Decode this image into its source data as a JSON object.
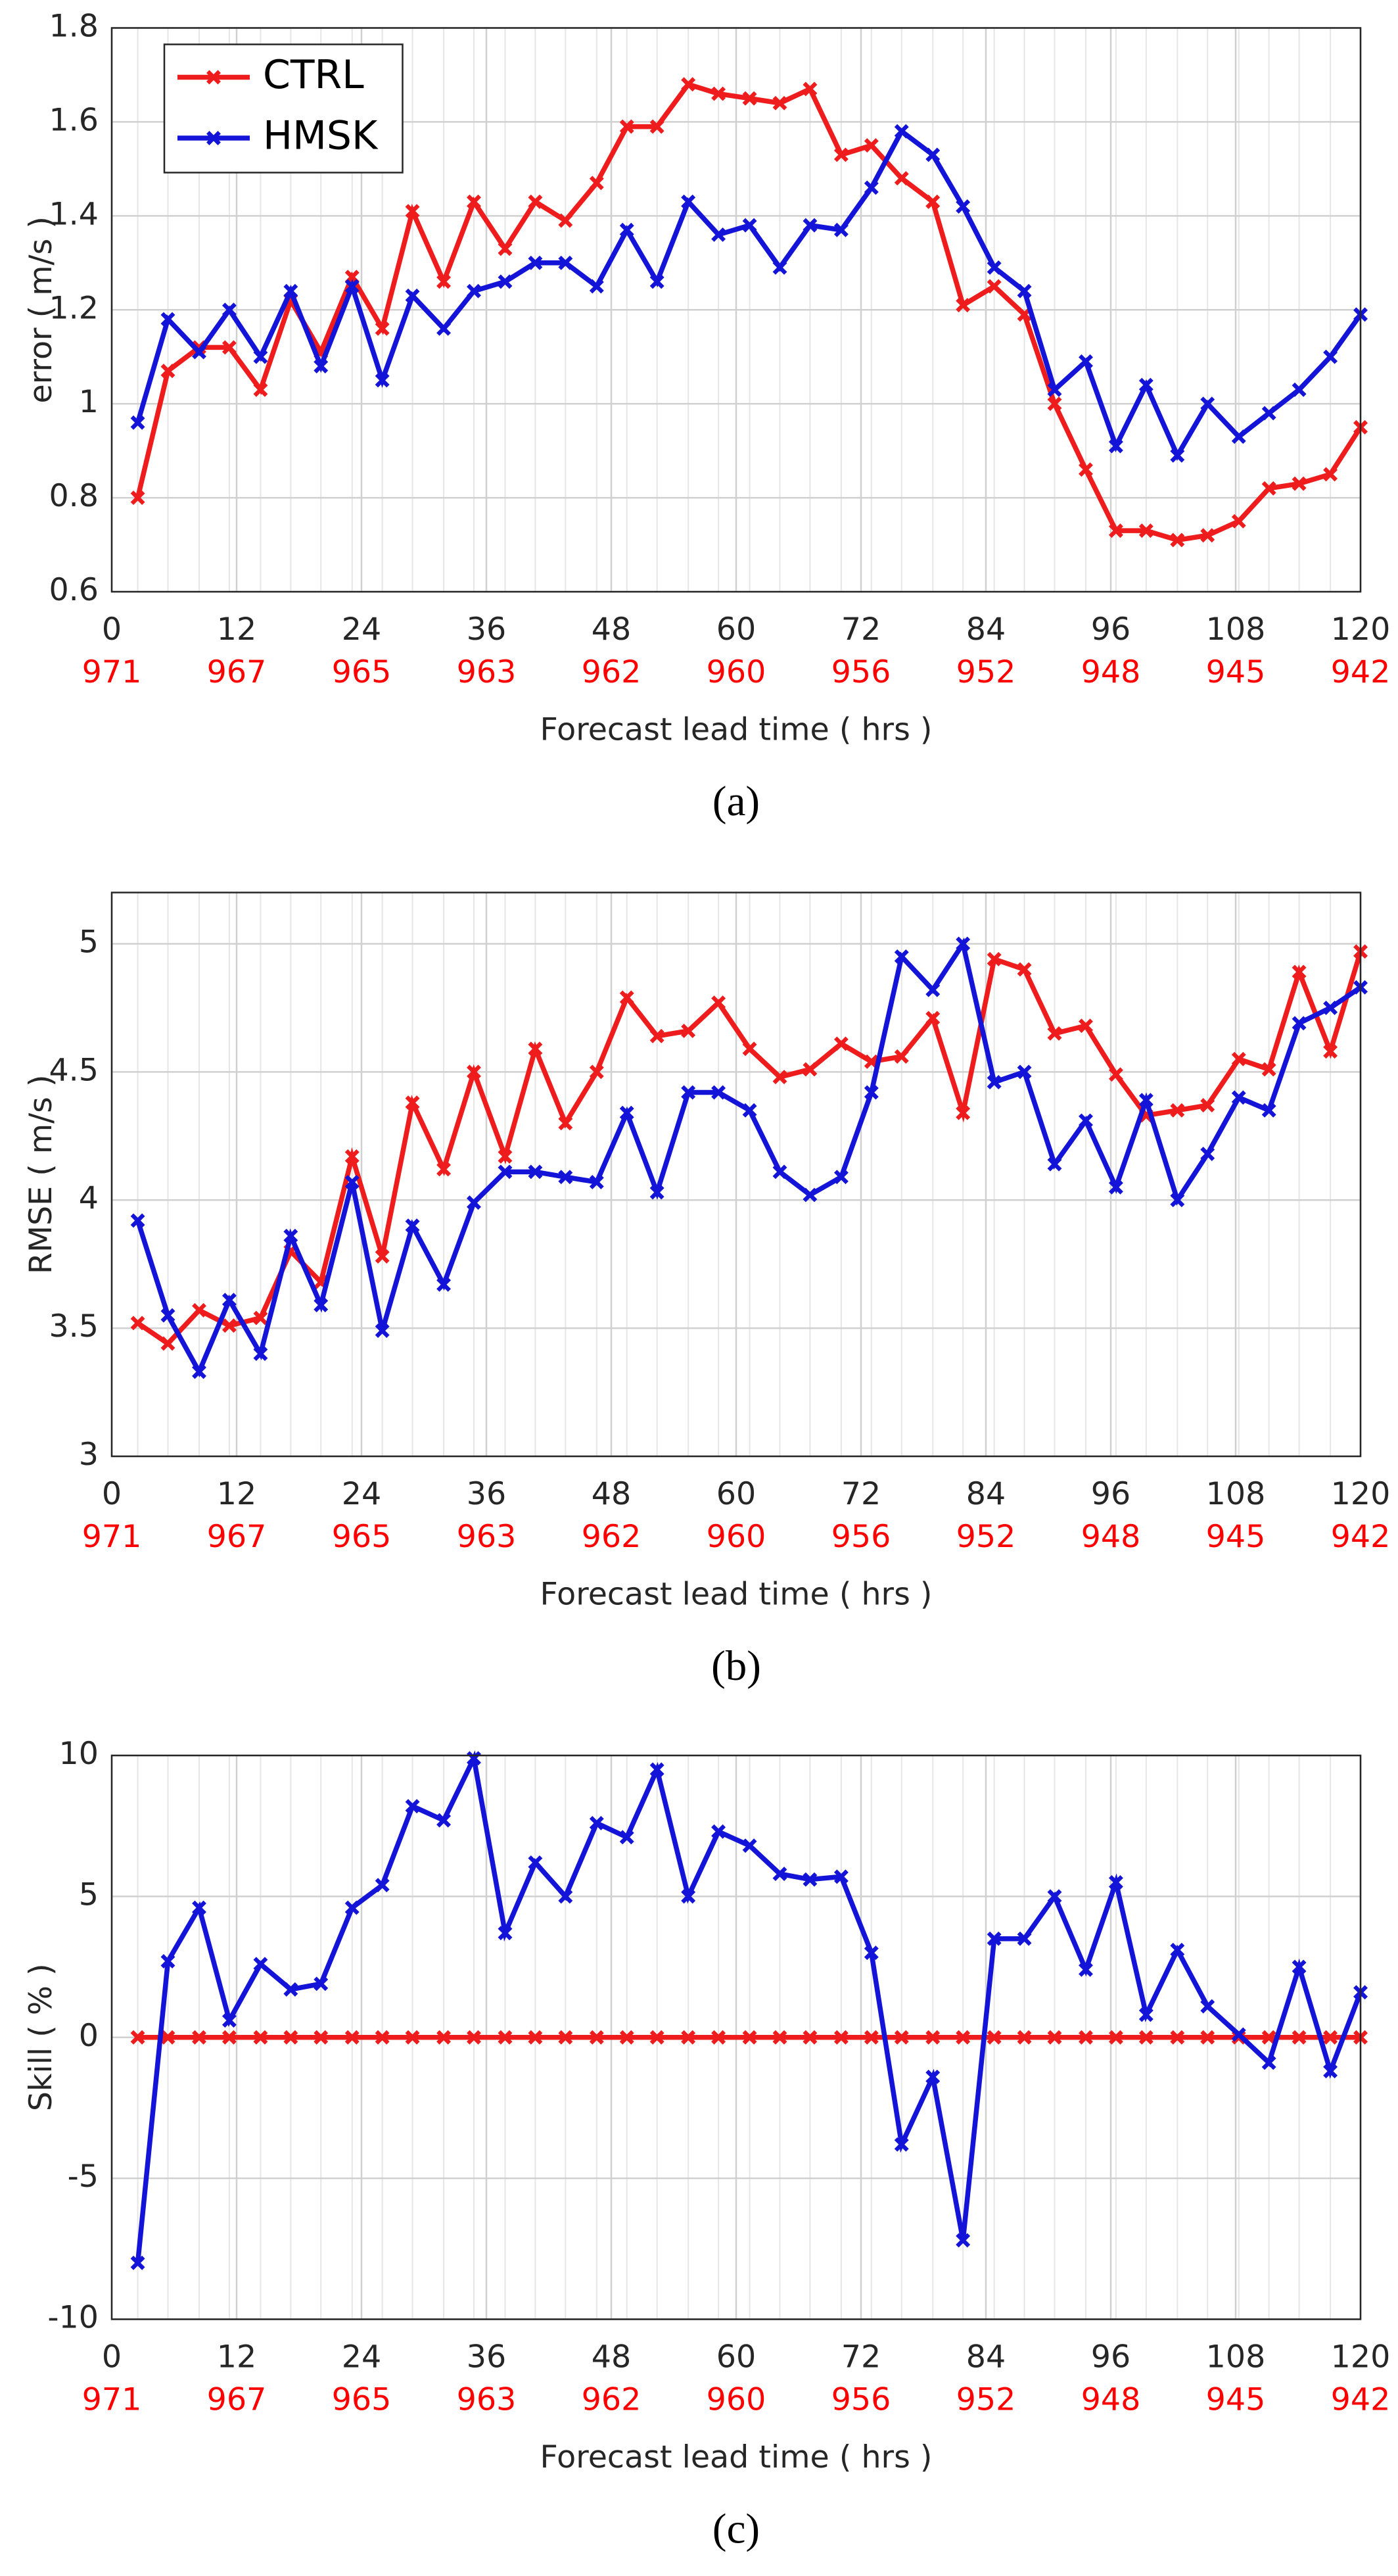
{
  "chart_data": [
    {
      "type": "line",
      "ylabel": "error  ( m/s )",
      "xlabel": "Forecast lead time ( hrs )",
      "caption": "(a)",
      "legend": "upper left",
      "grid": true,
      "xlim": [
        0,
        120
      ],
      "xticks": [
        0,
        12,
        24,
        36,
        48,
        60,
        72,
        84,
        96,
        108,
        120
      ],
      "xtick_secondary": [
        971,
        967,
        965,
        963,
        962,
        960,
        956,
        952,
        948,
        945,
        942
      ],
      "ylim": [
        0.6,
        1.8
      ],
      "yticks": [
        0.6,
        0.8,
        1,
        1.2,
        1.4,
        1.6,
        1.8
      ],
      "x": [
        2.5,
        5.4,
        8.4,
        11.3,
        14.3,
        17.2,
        20.1,
        23.1,
        26.0,
        28.9,
        31.9,
        34.8,
        37.8,
        40.7,
        43.6,
        46.6,
        49.5,
        52.4,
        55.4,
        58.3,
        61.3,
        64.2,
        67.1,
        70.1,
        73.0,
        75.9,
        78.9,
        81.8,
        84.8,
        87.7,
        90.6,
        93.6,
        96.5,
        99.4,
        102.4,
        105.3,
        108.3,
        111.2,
        114.1,
        117.1,
        120.0
      ],
      "series": [
        {
          "name": "CTRL",
          "color": "#ee1c1c",
          "values": [
            0.8,
            1.07,
            1.12,
            1.12,
            1.03,
            1.22,
            1.11,
            1.27,
            1.16,
            1.41,
            1.26,
            1.43,
            1.33,
            1.43,
            1.39,
            1.47,
            1.59,
            1.59,
            1.68,
            1.66,
            1.65,
            1.64,
            1.67,
            1.53,
            1.55,
            1.48,
            1.43,
            1.21,
            1.25,
            1.19,
            1.0,
            0.86,
            0.73,
            0.73,
            0.71,
            0.72,
            0.75,
            0.82,
            0.83,
            0.85,
            0.95
          ]
        },
        {
          "name": "HMSK",
          "color": "#1414d8",
          "values": [
            0.96,
            1.18,
            1.11,
            1.2,
            1.1,
            1.24,
            1.08,
            1.25,
            1.05,
            1.23,
            1.16,
            1.24,
            1.26,
            1.3,
            1.3,
            1.25,
            1.37,
            1.26,
            1.43,
            1.36,
            1.38,
            1.29,
            1.38,
            1.37,
            1.46,
            1.58,
            1.53,
            1.42,
            1.29,
            1.24,
            1.03,
            1.09,
            0.91,
            1.04,
            0.89,
            1.0,
            0.93,
            0.98,
            1.03,
            1.1,
            1.19
          ]
        }
      ]
    },
    {
      "type": "line",
      "ylabel": "RMSE ( m/s )",
      "xlabel": "Forecast lead time ( hrs )",
      "caption": "(b)",
      "grid": true,
      "xlim": [
        0,
        120
      ],
      "xticks": [
        0,
        12,
        24,
        36,
        48,
        60,
        72,
        84,
        96,
        108,
        120
      ],
      "xtick_secondary": [
        971,
        967,
        965,
        963,
        962,
        960,
        956,
        952,
        948,
        945,
        942
      ],
      "ylim": [
        3,
        5.2
      ],
      "yticks": [
        3,
        3.5,
        4,
        4.5,
        5
      ],
      "x": [
        2.5,
        5.4,
        8.4,
        11.3,
        14.3,
        17.2,
        20.1,
        23.1,
        26.0,
        28.9,
        31.9,
        34.8,
        37.8,
        40.7,
        43.6,
        46.6,
        49.5,
        52.4,
        55.4,
        58.3,
        61.3,
        64.2,
        67.1,
        70.1,
        73.0,
        75.9,
        78.9,
        81.8,
        84.8,
        87.7,
        90.6,
        93.6,
        96.5,
        99.4,
        102.4,
        105.3,
        108.3,
        111.2,
        114.1,
        117.1,
        120.0
      ],
      "series": [
        {
          "name": "CTRL",
          "color": "#ee1c1c",
          "values": [
            3.52,
            3.44,
            3.57,
            3.51,
            3.54,
            3.8,
            3.68,
            4.17,
            3.78,
            4.38,
            4.12,
            4.5,
            4.17,
            4.59,
            4.3,
            4.5,
            4.79,
            4.64,
            4.66,
            4.77,
            4.59,
            4.48,
            4.51,
            4.61,
            4.54,
            4.56,
            4.71,
            4.34,
            4.94,
            4.9,
            4.65,
            4.68,
            4.49,
            4.33,
            4.35,
            4.37,
            4.55,
            4.51,
            4.89,
            4.58,
            4.97
          ]
        },
        {
          "name": "HMSK",
          "color": "#1414d8",
          "values": [
            3.92,
            3.55,
            3.33,
            3.61,
            3.4,
            3.86,
            3.59,
            4.07,
            3.49,
            3.9,
            3.67,
            3.99,
            4.11,
            4.11,
            4.09,
            4.07,
            4.34,
            4.03,
            4.42,
            4.42,
            4.35,
            4.11,
            4.02,
            4.09,
            4.42,
            4.95,
            4.82,
            5.0,
            4.46,
            4.5,
            4.14,
            4.31,
            4.05,
            4.39,
            4.0,
            4.18,
            4.4,
            4.35,
            4.69,
            4.75,
            4.83
          ]
        }
      ]
    },
    {
      "type": "line",
      "ylabel": "Skill ( % )",
      "xlabel": "Forecast lead time ( hrs )",
      "caption": "(c)",
      "grid": true,
      "xlim": [
        0,
        120
      ],
      "xticks": [
        0,
        12,
        24,
        36,
        48,
        60,
        72,
        84,
        96,
        108,
        120
      ],
      "xtick_secondary": [
        971,
        967,
        965,
        963,
        962,
        960,
        956,
        952,
        948,
        945,
        942
      ],
      "ylim": [
        -10,
        10
      ],
      "yticks": [
        -10,
        -5,
        0,
        5,
        10
      ],
      "x": [
        2.5,
        5.4,
        8.4,
        11.3,
        14.3,
        17.2,
        20.1,
        23.1,
        26.0,
        28.9,
        31.9,
        34.8,
        37.8,
        40.7,
        43.6,
        46.6,
        49.5,
        52.4,
        55.4,
        58.3,
        61.3,
        64.2,
        67.1,
        70.1,
        73.0,
        75.9,
        78.9,
        81.8,
        84.8,
        87.7,
        90.6,
        93.6,
        96.5,
        99.4,
        102.4,
        105.3,
        108.3,
        111.2,
        114.1,
        117.1,
        120.0
      ],
      "series": [
        {
          "name": "CTRL",
          "color": "#ee1c1c",
          "values": [
            0,
            0,
            0,
            0,
            0,
            0,
            0,
            0,
            0,
            0,
            0,
            0,
            0,
            0,
            0,
            0,
            0,
            0,
            0,
            0,
            0,
            0,
            0,
            0,
            0,
            0,
            0,
            0,
            0,
            0,
            0,
            0,
            0,
            0,
            0,
            0,
            0,
            0,
            0,
            0,
            0
          ]
        },
        {
          "name": "HMSK",
          "color": "#1414d8",
          "values": [
            -8,
            2.7,
            4.6,
            0.6,
            2.6,
            1.7,
            1.9,
            4.6,
            5.4,
            8.2,
            7.7,
            9.9,
            3.7,
            6.2,
            5.0,
            7.6,
            7.1,
            9.5,
            5.0,
            7.3,
            6.8,
            5.8,
            5.6,
            5.7,
            3.0,
            -3.8,
            -1.4,
            -7.2,
            3.5,
            3.5,
            5.0,
            2.4,
            5.5,
            0.8,
            3.1,
            1.1,
            0.1,
            -0.9,
            2.5,
            -1.2,
            1.6
          ]
        }
      ]
    }
  ]
}
